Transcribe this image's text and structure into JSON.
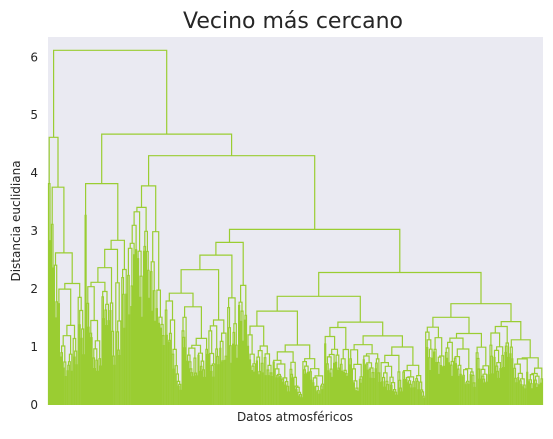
{
  "chart_data": {
    "type": "dendrogram",
    "title": "Vecino más cercano",
    "xlabel": "Datos atmosféricos",
    "ylabel": "Distancia euclidiana",
    "ylim": [
      0,
      6.35
    ],
    "yticks": [
      0,
      1,
      2,
      3,
      4,
      5,
      6
    ],
    "ytick_labels": [
      "0",
      "1",
      "2",
      "3",
      "4",
      "5",
      "6"
    ],
    "grid": false,
    "colors": {
      "plot_background": "#EAEAF2",
      "link": "#9ACD32",
      "text": "#262626"
    },
    "approx_merge_heights_sorted_desc": [
      6.12,
      4.62,
      3.82,
      3.78,
      3.5,
      3.46,
      3.1,
      2.95,
      2.86,
      2.8,
      2.76,
      2.72,
      2.7,
      2.55,
      2.45,
      2.42,
      2.38,
      2.3,
      2.2,
      2.16,
      2.14,
      2.08,
      2.05,
      2.02,
      1.98,
      1.92,
      1.9,
      1.86,
      1.84,
      1.8,
      1.76,
      1.72,
      1.68,
      1.6,
      1.55,
      1.5,
      1.46,
      1.44,
      1.4,
      1.35,
      1.3,
      1.2,
      1.1,
      1.0,
      0.9,
      0.8
    ]
  }
}
